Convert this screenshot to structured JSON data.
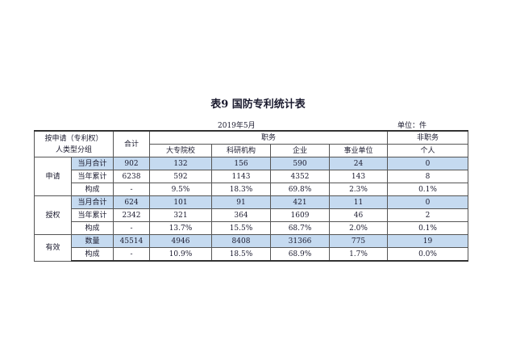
{
  "title": "表9  国防专利统计表",
  "date": "2019年5月",
  "unit": "单位：件",
  "table": {
    "header": {
      "group": [
        "按申请（专利权）",
        "人类型分组"
      ],
      "total": "合计",
      "service": "职务",
      "nonservice": "非职务",
      "columns": [
        "大专院校",
        "科研机构",
        "企业",
        "事业单位",
        "个人"
      ]
    },
    "groups": [
      {
        "label": "申请",
        "rows": [
          {
            "label": "当月合计",
            "cells": [
              "902",
              "132",
              "156",
              "590",
              "24",
              "0"
            ]
          },
          {
            "label": "当年累计",
            "cells": [
              "6238",
              "592",
              "1143",
              "4352",
              "143",
              "8"
            ]
          },
          {
            "label": "构成",
            "cells": [
              "-",
              "9.5%",
              "18.3%",
              "69.8%",
              "2.3%",
              "0.1%"
            ]
          }
        ]
      },
      {
        "label": "授权",
        "rows": [
          {
            "label": "当月合计",
            "cells": [
              "624",
              "101",
              "91",
              "421",
              "11",
              "0"
            ]
          },
          {
            "label": "当年累计",
            "cells": [
              "2342",
              "321",
              "364",
              "1609",
              "46",
              "2"
            ]
          },
          {
            "label": "构成",
            "cells": [
              "-",
              "13.7%",
              "15.5%",
              "68.7%",
              "2.0%",
              "0.1%"
            ]
          }
        ]
      },
      {
        "label": "有效",
        "rows": [
          {
            "label": "数量",
            "cells": [
              "45514",
              "4946",
              "8408",
              "31366",
              "775",
              "19"
            ]
          },
          {
            "label": "构成",
            "cells": [
              "-",
              "10.9%",
              "18.5%",
              "68.9%",
              "1.7%",
              "0.0%"
            ]
          }
        ]
      }
    ]
  }
}
